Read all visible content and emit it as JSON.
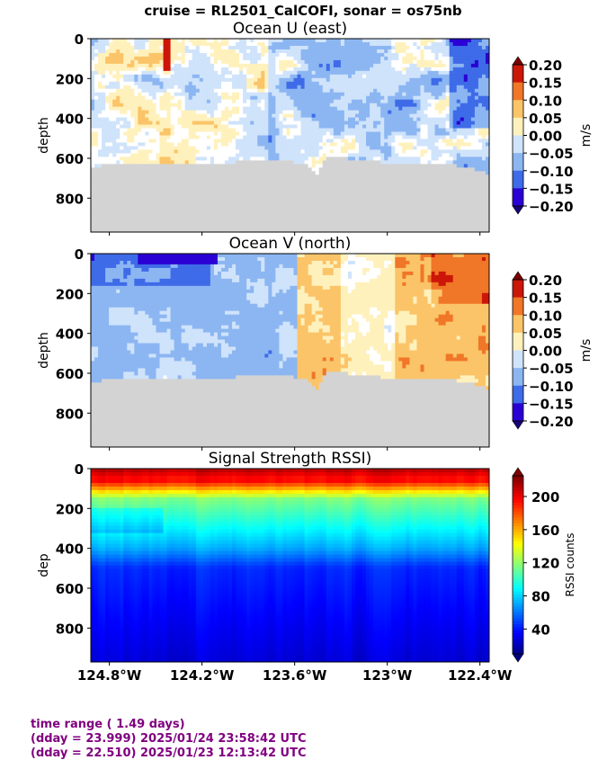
{
  "suptitle": "cruise = RL2501_CalCOFI,  sonar = os75nb",
  "chart_data": [
    {
      "type": "heatmap",
      "title": "Ocean U (east)",
      "ylabel": "depth",
      "ylim": [
        970,
        0
      ],
      "yticks": [
        0,
        200,
        400,
        600,
        800
      ],
      "xlim": [
        -124.92,
        -122.34
      ],
      "colorbar": {
        "label": "m/s",
        "ticks": [
          "0.20",
          "0.15",
          "0.10",
          "0.05",
          "0.00",
          "−0.05",
          "−0.10",
          "−0.15",
          "−0.20"
        ],
        "range": [
          -0.2,
          0.2
        ],
        "colors": [
          "#2a00d5",
          "#3e6be8",
          "#8cb6f2",
          "#cfe3fb",
          "#ffffff",
          "#fff1bc",
          "#fbc468",
          "#f07628",
          "#cc1608"
        ]
      },
      "bottom_depth_profile": {
        "lon": [
          -124.92,
          -124.8,
          -124.6,
          -124.4,
          -124.2,
          -124.0,
          -123.8,
          -123.6,
          -123.5,
          -123.45,
          -123.4,
          -123.3,
          -123.2,
          -123.1,
          -123.0,
          -122.8,
          -122.6,
          -122.4,
          -122.34
        ],
        "depth": [
          650,
          625,
          630,
          620,
          625,
          620,
          615,
          620,
          640,
          690,
          600,
          590,
          615,
          605,
          630,
          625,
          630,
          660,
          690
        ]
      },
      "pattern": "weak_mixed_u"
    },
    {
      "type": "heatmap",
      "title": "Ocean V (north)",
      "ylabel": "depth",
      "ylim": [
        970,
        0
      ],
      "yticks": [
        0,
        200,
        400,
        600,
        800
      ],
      "xlim": [
        -124.92,
        -122.34
      ],
      "colorbar": {
        "label": "m/s",
        "ticks": [
          "0.20",
          "0.15",
          "0.10",
          "0.05",
          "0.00",
          "−0.05",
          "−0.10",
          "−0.15",
          "−0.20"
        ],
        "range": [
          -0.2,
          0.2
        ],
        "colors": [
          "#2a00d5",
          "#3e6be8",
          "#8cb6f2",
          "#cfe3fb",
          "#ffffff",
          "#fff1bc",
          "#fbc468",
          "#f07628",
          "#cc1608"
        ]
      },
      "bottom_depth_profile": {
        "lon": [
          -124.92,
          -124.8,
          -124.6,
          -124.4,
          -124.2,
          -124.0,
          -123.8,
          -123.6,
          -123.5,
          -123.45,
          -123.4,
          -123.3,
          -123.2,
          -123.1,
          -123.0,
          -122.8,
          -122.6,
          -122.4,
          -122.34
        ],
        "depth": [
          650,
          625,
          630,
          620,
          625,
          620,
          615,
          620,
          640,
          690,
          600,
          590,
          615,
          605,
          630,
          625,
          630,
          660,
          690
        ]
      },
      "pattern": "west_south_east_north"
    },
    {
      "type": "heatmap",
      "title": "Signal Strength RSSI)",
      "ylabel": "dep",
      "ylim": [
        970,
        0
      ],
      "yticks": [
        0,
        200,
        400,
        600,
        800
      ],
      "xlim": [
        -124.92,
        -122.34
      ],
      "xticks": [
        "124.8°W",
        "124.2°W",
        "123.6°W",
        "123°W",
        "122.4°W"
      ],
      "xtick_values": [
        -124.8,
        -124.2,
        -123.6,
        -123.0,
        -122.4
      ],
      "colorbar": {
        "label": "RSSI counts",
        "ticks": [
          "200",
          "160",
          "120",
          "80",
          "40"
        ],
        "tick_values": [
          200,
          160,
          120,
          80,
          40
        ],
        "range": [
          10,
          225
        ],
        "colormap": "jet"
      },
      "pattern": "rssi_decay_with_depth"
    }
  ],
  "footer": {
    "line1": "time range ( 1.49 days)",
    "line2": "(dday = 23.999) 2025/01/24 23:58:42 UTC",
    "line3": "(dday = 22.510) 2025/01/23 12:13:42 UTC"
  }
}
